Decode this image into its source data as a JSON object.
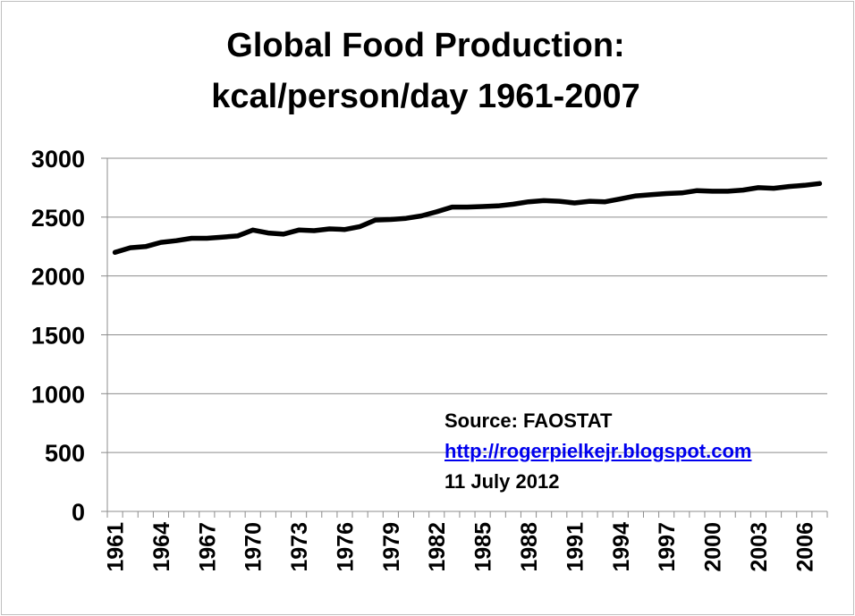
{
  "chart_data": {
    "type": "line",
    "title": [
      "Global Food Production:",
      "kcal/person/day 1961-2007"
    ],
    "xlabel": "",
    "ylabel": "",
    "ylim": [
      0,
      3000
    ],
    "yticks": [
      0,
      500,
      1000,
      1500,
      2000,
      2500,
      3000
    ],
    "grid": true,
    "x": [
      1961,
      1962,
      1963,
      1964,
      1965,
      1966,
      1967,
      1968,
      1969,
      1970,
      1971,
      1972,
      1973,
      1974,
      1975,
      1976,
      1977,
      1978,
      1979,
      1980,
      1981,
      1982,
      1983,
      1984,
      1985,
      1986,
      1987,
      1988,
      1989,
      1990,
      1991,
      1992,
      1993,
      1994,
      1995,
      1996,
      1997,
      1998,
      1999,
      2000,
      2001,
      2002,
      2003,
      2004,
      2005,
      2006,
      2007
    ],
    "xtick_labels": [
      "1961",
      "1964",
      "1967",
      "1970",
      "1973",
      "1976",
      "1979",
      "1982",
      "1985",
      "1988",
      "1991",
      "1994",
      "1997",
      "2000",
      "2003",
      "2006"
    ],
    "series": [
      {
        "name": "kcal/person/day",
        "color": "#000000",
        "values": [
          2200,
          2240,
          2250,
          2285,
          2300,
          2320,
          2320,
          2330,
          2340,
          2390,
          2365,
          2355,
          2390,
          2385,
          2400,
          2395,
          2420,
          2475,
          2480,
          2490,
          2510,
          2545,
          2585,
          2585,
          2590,
          2595,
          2610,
          2630,
          2640,
          2635,
          2620,
          2635,
          2630,
          2655,
          2680,
          2690,
          2700,
          2705,
          2725,
          2720,
          2720,
          2730,
          2750,
          2745,
          2760,
          2770,
          2785
        ]
      }
    ],
    "annotations": {
      "source": "Source: FAOSTAT",
      "link": "http://rogerpielkejr.blogspot.com",
      "date": "11 July 2012"
    }
  }
}
